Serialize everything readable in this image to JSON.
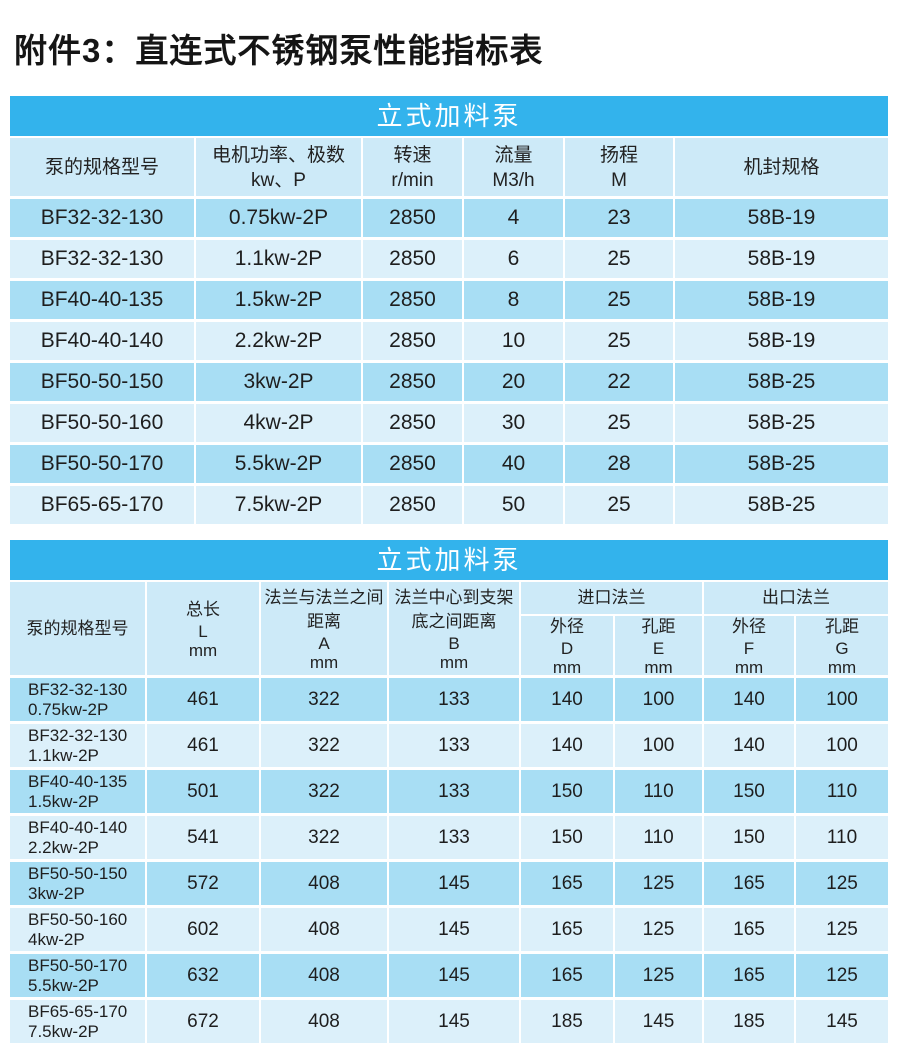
{
  "page": {
    "title": "附件3：直连式不锈钢泵性能指标表"
  },
  "colors": {
    "banner_blue": "#33b3ec",
    "header_bg": "#cdeaf8",
    "row_dark": "#a8def4",
    "row_light": "#dcf0fa",
    "banner_text": "#ffffff",
    "body_text": "#1e1e1e"
  },
  "table1": {
    "banner": "立式加料泵",
    "columns": [
      [
        "泵的规格型号"
      ],
      [
        "电机功率、极数",
        "kw、P"
      ],
      [
        "转速",
        "r/min"
      ],
      [
        "流量",
        "M3/h"
      ],
      [
        "扬程",
        "M"
      ],
      [
        "机封规格"
      ]
    ],
    "rows": [
      [
        "BF32-32-130",
        "0.75kw-2P",
        "2850",
        "4",
        "23",
        "58B-19"
      ],
      [
        "BF32-32-130",
        "1.1kw-2P",
        "2850",
        "6",
        "25",
        "58B-19"
      ],
      [
        "BF40-40-135",
        "1.5kw-2P",
        "2850",
        "8",
        "25",
        "58B-19"
      ],
      [
        "BF40-40-140",
        "2.2kw-2P",
        "2850",
        "10",
        "25",
        "58B-19"
      ],
      [
        "BF50-50-150",
        "3kw-2P",
        "2850",
        "20",
        "22",
        "58B-25"
      ],
      [
        "BF50-50-160",
        "4kw-2P",
        "2850",
        "30",
        "25",
        "58B-25"
      ],
      [
        "BF50-50-170",
        "5.5kw-2P",
        "2850",
        "40",
        "28",
        "58B-25"
      ],
      [
        "BF65-65-170",
        "7.5kw-2P",
        "2850",
        "50",
        "25",
        "58B-25"
      ]
    ]
  },
  "table2": {
    "banner": "立式加料泵",
    "header": {
      "model": "泵的规格型号",
      "length": [
        "总长",
        "L",
        "mm"
      ],
      "flange": [
        "法兰与法兰之间",
        "距离",
        "A",
        "mm"
      ],
      "bracket": [
        "法兰中心到支架",
        "底之间距离",
        "B",
        "mm"
      ],
      "inlet": "进口法兰",
      "outlet": "出口法兰",
      "d": [
        "外径",
        "D",
        "mm"
      ],
      "e": [
        "孔距",
        "E",
        "mm"
      ],
      "f": [
        "外径",
        "F",
        "mm"
      ],
      "g": [
        "孔距",
        "G",
        "mm"
      ]
    },
    "rows": [
      {
        "model": "BF32-32-130",
        "power": "0.75kw-2P",
        "values": [
          "461",
          "322",
          "133",
          "140",
          "100",
          "140",
          "100"
        ]
      },
      {
        "model": "BF32-32-130",
        "power": "1.1kw-2P",
        "values": [
          "461",
          "322",
          "133",
          "140",
          "100",
          "140",
          "100"
        ]
      },
      {
        "model": "BF40-40-135",
        "power": "1.5kw-2P",
        "values": [
          "501",
          "322",
          "133",
          "150",
          "110",
          "150",
          "110"
        ]
      },
      {
        "model": "BF40-40-140",
        "power": "2.2kw-2P",
        "values": [
          "541",
          "322",
          "133",
          "150",
          "110",
          "150",
          "110"
        ]
      },
      {
        "model": "BF50-50-150",
        "power": "3kw-2P",
        "values": [
          "572",
          "408",
          "145",
          "165",
          "125",
          "165",
          "125"
        ]
      },
      {
        "model": "BF50-50-160",
        "power": "4kw-2P",
        "values": [
          "602",
          "408",
          "145",
          "165",
          "125",
          "165",
          "125"
        ]
      },
      {
        "model": "BF50-50-170",
        "power": "5.5kw-2P",
        "values": [
          "632",
          "408",
          "145",
          "165",
          "125",
          "165",
          "125"
        ]
      },
      {
        "model": "BF65-65-170",
        "power": "7.5kw-2P",
        "values": [
          "672",
          "408",
          "145",
          "185",
          "145",
          "185",
          "145"
        ]
      }
    ]
  }
}
